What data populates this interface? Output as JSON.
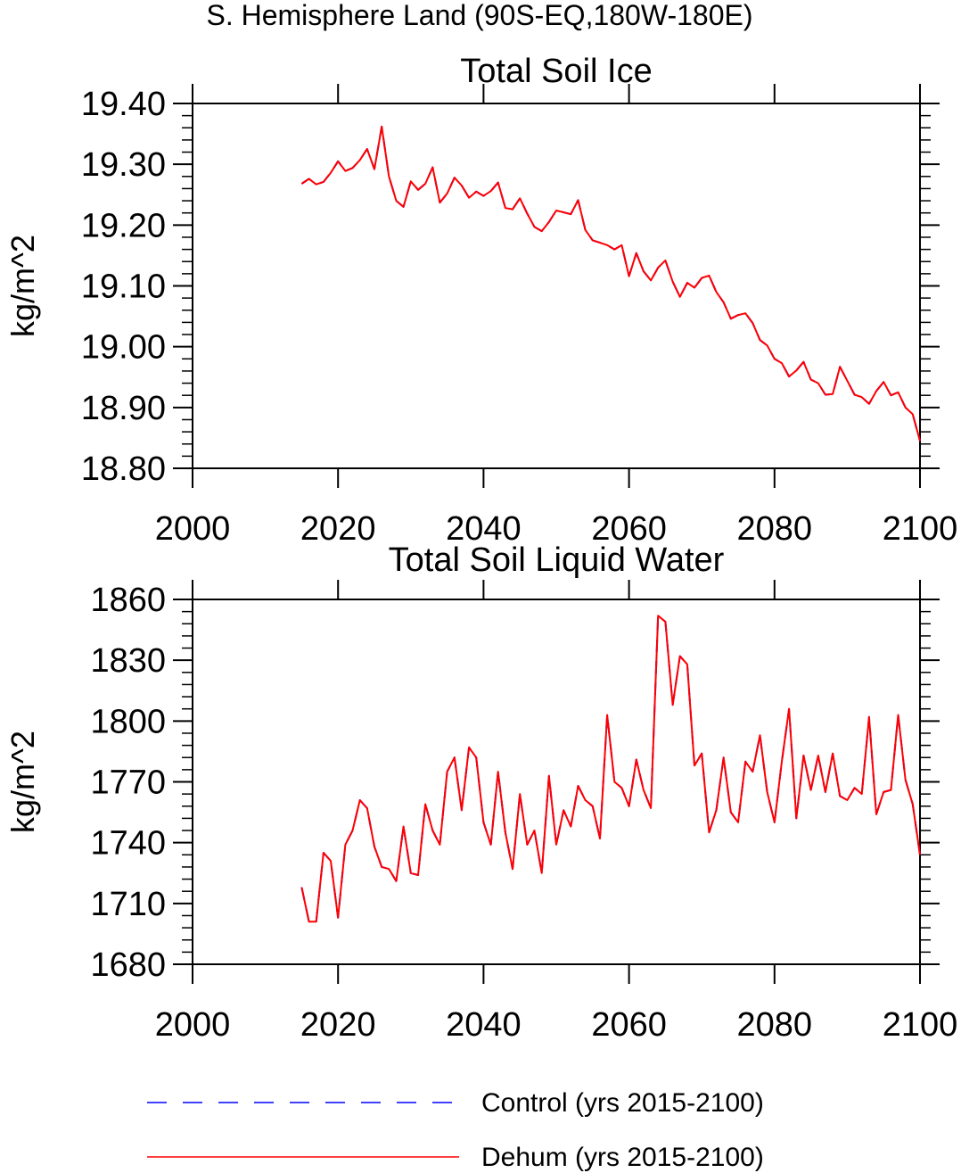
{
  "figure": {
    "suptitle": "S. Hemisphere Land (90S-EQ,180W-180E)"
  },
  "legend": {
    "control_label": "Control (yrs 2015-2100)",
    "dehum_label": "Dehum (yrs 2015-2100)",
    "control_color": "#0000ff",
    "dehum_color": "#ff0000"
  },
  "chart_data": [
    {
      "type": "line",
      "title": "Total Soil Ice",
      "xlabel": "",
      "ylabel": "kg/m^2",
      "xlim": [
        2000,
        2100
      ],
      "ylim": [
        18.8,
        19.4
      ],
      "xticks": [
        2000,
        2020,
        2040,
        2060,
        2080,
        2100
      ],
      "xtick_labels": [
        "2000",
        "2020",
        "2040",
        "2060",
        "2080",
        "2100"
      ],
      "yticks": [
        18.8,
        18.9,
        19.0,
        19.1,
        19.2,
        19.3,
        19.4
      ],
      "ytick_labels": [
        "18.80",
        "18.90",
        "19.00",
        "19.10",
        "19.20",
        "19.30",
        "19.40"
      ],
      "x": [
        2015,
        2016,
        2017,
        2018,
        2019,
        2020,
        2021,
        2022,
        2023,
        2024,
        2025,
        2026,
        2027,
        2028,
        2029,
        2030,
        2031,
        2032,
        2033,
        2034,
        2035,
        2036,
        2037,
        2038,
        2039,
        2040,
        2041,
        2042,
        2043,
        2044,
        2045,
        2046,
        2047,
        2048,
        2049,
        2050,
        2051,
        2052,
        2053,
        2054,
        2055,
        2056,
        2057,
        2058,
        2059,
        2060,
        2061,
        2062,
        2063,
        2064,
        2065,
        2066,
        2067,
        2068,
        2069,
        2070,
        2071,
        2072,
        2073,
        2074,
        2075,
        2076,
        2077,
        2078,
        2079,
        2080,
        2081,
        2082,
        2083,
        2084,
        2085,
        2086,
        2087,
        2088,
        2089,
        2090,
        2091,
        2092,
        2093,
        2094,
        2095,
        2096,
        2097,
        2098,
        2099,
        2100
      ],
      "series": [
        {
          "name": "Control (yrs 2015-2100)",
          "style": "dashed",
          "color": "#0000ff",
          "values": [
            19.268,
            19.276,
            19.267,
            19.271,
            19.286,
            19.305,
            19.289,
            19.294,
            19.307,
            19.325,
            19.292,
            19.362,
            19.28,
            19.24,
            19.23,
            19.272,
            19.258,
            19.268,
            19.295,
            19.237,
            19.252,
            19.278,
            19.265,
            19.245,
            19.255,
            19.248,
            19.256,
            19.27,
            19.228,
            19.226,
            19.244,
            19.219,
            19.197,
            19.19,
            19.205,
            19.224,
            19.221,
            19.218,
            19.241,
            19.192,
            19.175,
            19.171,
            19.167,
            19.16,
            19.167,
            19.116,
            19.154,
            19.124,
            19.109,
            19.13,
            19.142,
            19.107,
            19.082,
            19.105,
            19.097,
            19.113,
            19.117,
            19.09,
            19.073,
            19.046,
            19.052,
            19.055,
            19.039,
            19.011,
            19.002,
            18.98,
            18.973,
            18.951,
            18.961,
            18.975,
            18.946,
            18.94,
            18.921,
            18.922,
            18.967,
            18.944,
            18.921,
            18.917,
            18.906,
            18.927,
            18.942,
            18.92,
            18.925,
            18.9,
            18.889,
            18.845
          ]
        },
        {
          "name": "Dehum (yrs 2015-2100)",
          "style": "solid",
          "color": "#ff0000",
          "values": [
            19.268,
            19.276,
            19.267,
            19.271,
            19.286,
            19.305,
            19.289,
            19.294,
            19.307,
            19.325,
            19.292,
            19.362,
            19.28,
            19.24,
            19.23,
            19.272,
            19.258,
            19.268,
            19.295,
            19.237,
            19.252,
            19.278,
            19.265,
            19.245,
            19.255,
            19.248,
            19.256,
            19.27,
            19.228,
            19.226,
            19.244,
            19.219,
            19.197,
            19.19,
            19.205,
            19.224,
            19.221,
            19.218,
            19.241,
            19.192,
            19.175,
            19.171,
            19.167,
            19.16,
            19.167,
            19.116,
            19.154,
            19.124,
            19.109,
            19.13,
            19.142,
            19.107,
            19.082,
            19.105,
            19.097,
            19.113,
            19.117,
            19.09,
            19.073,
            19.046,
            19.052,
            19.055,
            19.039,
            19.011,
            19.002,
            18.98,
            18.973,
            18.951,
            18.961,
            18.975,
            18.946,
            18.94,
            18.921,
            18.922,
            18.967,
            18.944,
            18.921,
            18.917,
            18.906,
            18.927,
            18.942,
            18.92,
            18.925,
            18.9,
            18.889,
            18.845
          ]
        }
      ]
    },
    {
      "type": "line",
      "title": "Total Soil Liquid Water",
      "xlabel": "",
      "ylabel": "kg/m^2",
      "xlim": [
        2000,
        2100
      ],
      "ylim": [
        1680,
        1860
      ],
      "xticks": [
        2000,
        2020,
        2040,
        2060,
        2080,
        2100
      ],
      "xtick_labels": [
        "2000",
        "2020",
        "2040",
        "2060",
        "2080",
        "2100"
      ],
      "yticks": [
        1680,
        1710,
        1740,
        1770,
        1800,
        1830,
        1860
      ],
      "ytick_labels": [
        "1680",
        "1710",
        "1740",
        "1770",
        "1800",
        "1830",
        "1860"
      ],
      "x": [
        2015,
        2016,
        2017,
        2018,
        2019,
        2020,
        2021,
        2022,
        2023,
        2024,
        2025,
        2026,
        2027,
        2028,
        2029,
        2030,
        2031,
        2032,
        2033,
        2034,
        2035,
        2036,
        2037,
        2038,
        2039,
        2040,
        2041,
        2042,
        2043,
        2044,
        2045,
        2046,
        2047,
        2048,
        2049,
        2050,
        2051,
        2052,
        2053,
        2054,
        2055,
        2056,
        2057,
        2058,
        2059,
        2060,
        2061,
        2062,
        2063,
        2064,
        2065,
        2066,
        2067,
        2068,
        2069,
        2070,
        2071,
        2072,
        2073,
        2074,
        2075,
        2076,
        2077,
        2078,
        2079,
        2080,
        2081,
        2082,
        2083,
        2084,
        2085,
        2086,
        2087,
        2088,
        2089,
        2090,
        2091,
        2092,
        2093,
        2094,
        2095,
        2096,
        2097,
        2098,
        2099,
        2100
      ],
      "series": [
        {
          "name": "Control (yrs 2015-2100)",
          "style": "dashed",
          "color": "#0000ff",
          "values": [
            1718,
            1701,
            1701,
            1735,
            1731,
            1703,
            1739,
            1746,
            1761,
            1757,
            1738,
            1728,
            1727,
            1721,
            1748,
            1725,
            1724,
            1759,
            1746,
            1739,
            1775,
            1782,
            1756,
            1787,
            1782,
            1750,
            1739,
            1775,
            1745,
            1727,
            1764,
            1739,
            1746,
            1725,
            1773,
            1739,
            1756,
            1748,
            1768,
            1761,
            1758,
            1742,
            1803,
            1770,
            1767,
            1758,
            1781,
            1766,
            1757,
            1852,
            1849,
            1808,
            1832,
            1828,
            1778,
            1784,
            1745,
            1756,
            1782,
            1755,
            1750,
            1780,
            1775,
            1793,
            1765,
            1750,
            1780,
            1806,
            1752,
            1783,
            1766,
            1783,
            1765,
            1784,
            1763,
            1761,
            1767,
            1764,
            1802,
            1754,
            1765,
            1766,
            1803,
            1771,
            1759,
            1734
          ]
        },
        {
          "name": "Dehum (yrs 2015-2100)",
          "style": "solid",
          "color": "#ff0000",
          "values": [
            1718,
            1701,
            1701,
            1735,
            1731,
            1703,
            1739,
            1746,
            1761,
            1757,
            1738,
            1728,
            1727,
            1721,
            1748,
            1725,
            1724,
            1759,
            1746,
            1739,
            1775,
            1782,
            1756,
            1787,
            1782,
            1750,
            1739,
            1775,
            1745,
            1727,
            1764,
            1739,
            1746,
            1725,
            1773,
            1739,
            1756,
            1748,
            1768,
            1761,
            1758,
            1742,
            1803,
            1770,
            1767,
            1758,
            1781,
            1766,
            1757,
            1852,
            1849,
            1808,
            1832,
            1828,
            1778,
            1784,
            1745,
            1756,
            1782,
            1755,
            1750,
            1780,
            1775,
            1793,
            1765,
            1750,
            1780,
            1806,
            1752,
            1783,
            1766,
            1783,
            1765,
            1784,
            1763,
            1761,
            1767,
            1764,
            1802,
            1754,
            1765,
            1766,
            1803,
            1771,
            1759,
            1734
          ]
        }
      ]
    }
  ]
}
